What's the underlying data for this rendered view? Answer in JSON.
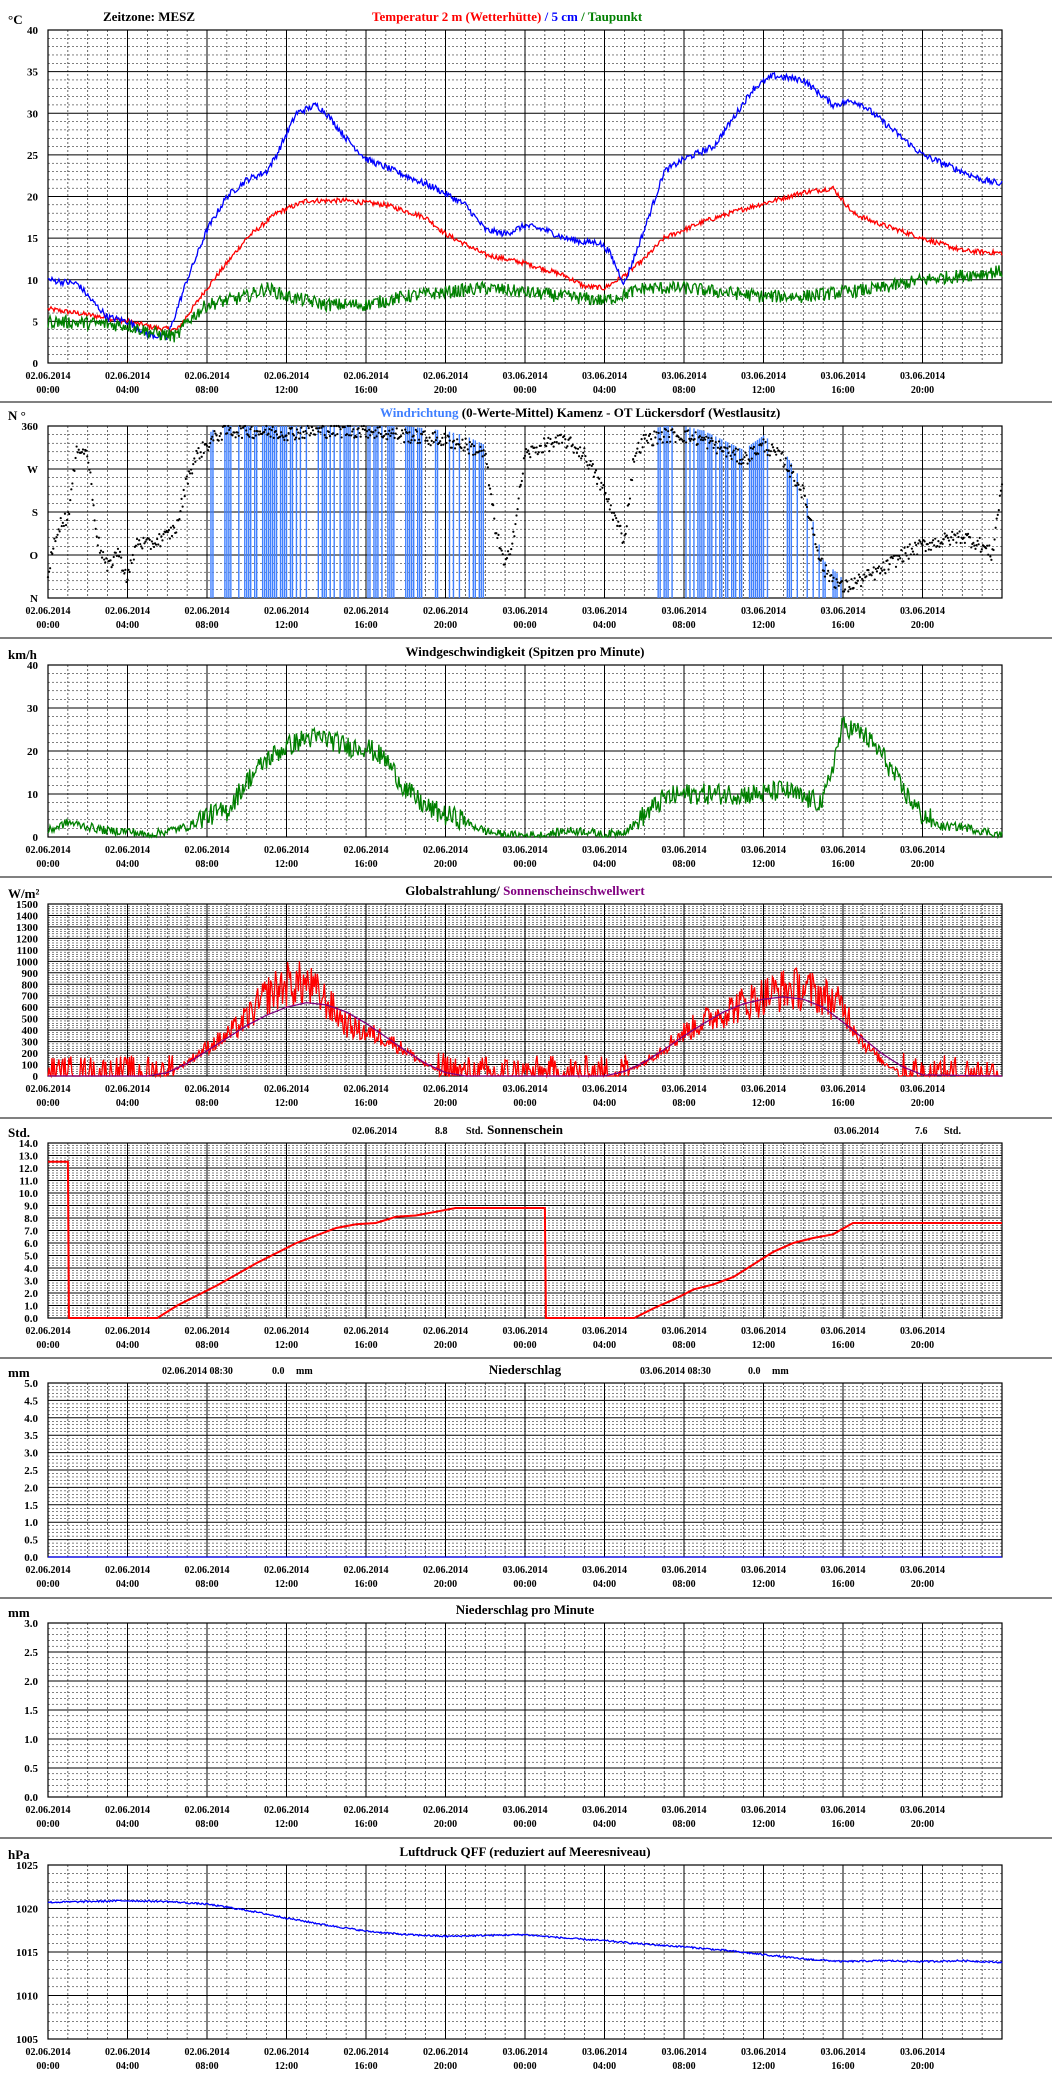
{
  "time_labels": [
    {
      "date": "02.06.2014",
      "time": "00:00"
    },
    {
      "date": "02.06.2014",
      "time": "04:00"
    },
    {
      "date": "02.06.2014",
      "time": "08:00"
    },
    {
      "date": "02.06.2014",
      "time": "12:00"
    },
    {
      "date": "02.06.2014",
      "time": "16:00"
    },
    {
      "date": "02.06.2014",
      "time": "20:00"
    },
    {
      "date": "03.06.2014",
      "time": "00:00"
    },
    {
      "date": "03.06.2014",
      "time": "04:00"
    },
    {
      "date": "03.06.2014",
      "time": "08:00"
    },
    {
      "date": "03.06.2014",
      "time": "12:00"
    },
    {
      "date": "03.06.2014",
      "time": "16:00"
    },
    {
      "date": "03.06.2014",
      "time": "20:00"
    }
  ],
  "colors": {
    "red": "#ff0000",
    "blue": "#0000ff",
    "green": "#008000",
    "purple": "#800080",
    "lightblue": "#4080ff",
    "black": "#000000"
  },
  "chart_data": [
    {
      "id": "temperature",
      "type": "line",
      "unit": "°C",
      "timezone": "Zeitzone: MESZ",
      "title_parts": [
        {
          "text": "Temperatur 2 m (Wetterhütte)",
          "color": "#ff0000"
        },
        {
          "text": " / ",
          "color": "#0000ff"
        },
        {
          "text": "5 cm",
          "color": "#0000ff"
        },
        {
          "text": " / ",
          "color": "#008000"
        },
        {
          "text": "Taupunkt",
          "color": "#008000"
        }
      ],
      "ylim": [
        0,
        40
      ],
      "y_ticks": [
        0,
        5,
        10,
        15,
        20,
        25,
        30,
        35,
        40
      ],
      "xlim": [
        0,
        48
      ],
      "series": [
        {
          "name": "Temperatur 2 m (Wetterhütte)",
          "color": "#ff0000",
          "noise": 0.3,
          "x": [
            0,
            2,
            4,
            5.5,
            6.5,
            8,
            10,
            11.5,
            13,
            15,
            17,
            19,
            20,
            22,
            24,
            26,
            27,
            28,
            29,
            30,
            31,
            33,
            35,
            36.5,
            38,
            39.5,
            40.5,
            41.5,
            44,
            46,
            48
          ],
          "y": [
            6.5,
            5.8,
            5,
            4.2,
            4,
            9,
            15,
            18,
            19.5,
            19.5,
            19,
            17.5,
            15.5,
            13,
            12,
            10.5,
            9.2,
            9,
            10.5,
            12.5,
            15,
            17,
            18.5,
            19.5,
            20.5,
            21,
            18,
            17,
            15,
            13.5,
            13.2
          ]
        },
        {
          "name": "5 cm",
          "color": "#0000ff",
          "noise": 0.4,
          "x": [
            0,
            1.5,
            2.2,
            3,
            4,
            5,
            6,
            7,
            8,
            9,
            10,
            11,
            11.5,
            12.5,
            13.5,
            14,
            15,
            16,
            17,
            18,
            19.5,
            21,
            22,
            23,
            24,
            25,
            26,
            27,
            27.7,
            28.2,
            29,
            30,
            31,
            32,
            33.5,
            34.5,
            35.5,
            36.5,
            38,
            39.5,
            40.5,
            41,
            42,
            44,
            46,
            47,
            48
          ],
          "y": [
            10,
            9.5,
            7.5,
            5.5,
            5,
            3.5,
            3,
            10,
            16,
            20,
            22,
            23,
            25,
            30,
            31,
            30,
            27,
            24.5,
            23.5,
            22.5,
            21,
            19,
            16,
            15.5,
            16.5,
            16,
            15,
            14.5,
            14.5,
            13.5,
            9.5,
            16,
            23,
            24.5,
            26,
            29.5,
            33,
            34.5,
            34,
            31,
            31.5,
            31,
            29,
            25,
            23,
            22,
            21.5
          ],
          "spikes": [
            [
              12,
              16,
              12
            ]
          ]
        },
        {
          "name": "Taupunkt",
          "color": "#008000",
          "noise": 0.8,
          "x": [
            0,
            2,
            4,
            5.5,
            6.5,
            7,
            8,
            10,
            11,
            12,
            14,
            16,
            18,
            20,
            22,
            24,
            26,
            28,
            30,
            32,
            34,
            36,
            38,
            40,
            42,
            44,
            46,
            48
          ],
          "y": [
            5,
            4.8,
            4.5,
            3.5,
            3.2,
            5,
            7,
            8,
            9,
            8,
            7,
            7,
            8,
            8.5,
            9,
            8.5,
            8,
            7.5,
            9,
            9,
            8.5,
            8,
            8,
            8.5,
            9,
            10,
            10.5,
            11
          ]
        }
      ]
    },
    {
      "id": "winddir",
      "type": "scatter",
      "unit": "N °",
      "title_parts": [
        {
          "text": "Windrichtung",
          "color": "#4080ff"
        },
        {
          "text": " (0-Werte-Mittel)",
          "color": "#000000"
        },
        {
          "text": "        Kamenz - OT Lückersdorf (Westlausitz)",
          "color": "#000000"
        }
      ],
      "ylim": [
        0,
        360
      ],
      "y_ticks": [
        0,
        90,
        180,
        270,
        360
      ],
      "y_tick_labels": [
        {
          "value": 0,
          "label": "N"
        },
        {
          "value": 90,
          "label": "O"
        },
        {
          "value": 180,
          "label": "S"
        },
        {
          "value": 270,
          "label": "W"
        },
        {
          "value": 360,
          "label": "360"
        }
      ],
      "xlim": [
        0,
        48
      ],
      "series": [
        {
          "name": "Windrichtung",
          "color": "#000000",
          "noise": 15,
          "x": [
            0,
            0.5,
            1,
            1.5,
            2,
            2.5,
            3,
            3.5,
            4,
            4.5,
            5,
            5.5,
            6,
            6.5,
            7,
            7.5,
            8,
            8.5,
            9,
            10,
            12,
            14,
            16,
            18,
            20,
            21,
            22,
            22.5,
            23,
            23.5,
            24,
            25,
            26,
            27,
            28,
            29,
            29.5,
            30,
            31,
            32,
            33,
            34,
            35,
            36,
            37,
            38,
            39,
            40,
            40.5,
            41,
            42,
            43,
            44,
            45,
            46,
            47,
            47.5,
            48
          ],
          "y": [
            50,
            150,
            170,
            320,
            300,
            120,
            60,
            100,
            40,
            120,
            110,
            120,
            130,
            150,
            250,
            300,
            320,
            340,
            350,
            350,
            345,
            350,
            350,
            340,
            330,
            320,
            300,
            150,
            60,
            150,
            300,
            320,
            330,
            300,
            220,
            120,
            300,
            330,
            340,
            340,
            330,
            310,
            290,
            320,
            290,
            220,
            60,
            20,
            30,
            40,
            60,
            90,
            110,
            120,
            130,
            110,
            90,
            240
          ]
        },
        {
          "name": "Windrichtung (0-Werte-Mittel)",
          "color": "#4080ff",
          "noise": 0,
          "x": [
            0,
            48
          ],
          "y": [
            0,
            0
          ]
        }
      ]
    },
    {
      "id": "windspeed",
      "type": "line",
      "unit": "km/h",
      "title_parts": [
        {
          "text": "Windgeschwindigkeit (Spitzen pro Minute)",
          "color": "#000000"
        }
      ],
      "ylim": [
        0,
        40
      ],
      "y_ticks": [
        0,
        10,
        20,
        30,
        40
      ],
      "xlim": [
        0,
        48
      ],
      "series": [
        {
          "name": "Windgeschwindigkeit",
          "color": "#008000",
          "noise": 5,
          "x": [
            0,
            1,
            2,
            3,
            4,
            5,
            6,
            7,
            8,
            9,
            10,
            11,
            12,
            13,
            14,
            15,
            16,
            17,
            18,
            19,
            20,
            21,
            22,
            23,
            24,
            25,
            26,
            27,
            28,
            29,
            30,
            31,
            32,
            33,
            34,
            35,
            36,
            37,
            38,
            39,
            40,
            41,
            42,
            43,
            44,
            45,
            46,
            47,
            48
          ],
          "y": [
            1,
            3,
            2,
            1,
            1,
            0,
            1,
            2,
            4,
            5,
            12,
            17,
            20,
            22,
            22,
            20,
            20,
            17,
            10,
            6,
            4,
            3,
            1,
            0,
            0,
            0,
            1,
            1,
            0,
            1,
            4,
            8,
            9,
            9,
            9,
            9,
            9,
            10,
            8,
            7,
            25,
            23,
            18,
            10,
            4,
            2,
            2,
            1,
            0
          ]
        }
      ]
    },
    {
      "id": "radiation",
      "type": "line",
      "unit": "W/m²",
      "title_parts": [
        {
          "text": "Globalstrahlung/ ",
          "color": "#000000"
        },
        {
          "text": "Sonnenscheinschwellwert",
          "color": "#800080"
        }
      ],
      "ylim": [
        0,
        1500
      ],
      "y_ticks": [
        0,
        100,
        200,
        300,
        400,
        500,
        600,
        700,
        800,
        900,
        1000,
        1100,
        1200,
        1300,
        1400,
        1500
      ],
      "xlim": [
        0,
        48
      ],
      "series": [
        {
          "name": "Globalstrahlung",
          "color": "#ff0000",
          "noise": 180,
          "x": [
            0,
            5,
            6,
            7,
            8,
            9,
            10,
            11,
            12,
            13,
            14,
            15,
            16,
            17,
            18,
            19,
            20,
            21,
            22,
            28,
            29,
            30,
            31,
            32,
            33,
            34,
            35,
            36,
            37,
            38,
            39,
            40,
            41,
            42,
            43,
            44,
            48
          ],
          "y": [
            0,
            0,
            20,
            120,
            250,
            350,
            500,
            700,
            800,
            800,
            650,
            450,
            380,
            330,
            220,
            100,
            20,
            0,
            0,
            0,
            30,
            120,
            250,
            380,
            480,
            560,
            630,
            700,
            750,
            760,
            700,
            600,
            300,
            120,
            30,
            0,
            0
          ]
        },
        {
          "name": "Sonnenscheinschwellwert",
          "color": "#800080",
          "noise": 0,
          "x": [
            0,
            5,
            6,
            7,
            8,
            9,
            10,
            11,
            12,
            13,
            14,
            15,
            16,
            17,
            18,
            19,
            20,
            21,
            22,
            28,
            29,
            30,
            31,
            32,
            33,
            34,
            35,
            36,
            37,
            38,
            39,
            40,
            41,
            42,
            43,
            44,
            48
          ],
          "y": [
            0,
            0,
            30,
            110,
            220,
            330,
            440,
            530,
            600,
            640,
            620,
            560,
            460,
            340,
            220,
            110,
            30,
            0,
            0,
            0,
            40,
            120,
            230,
            350,
            460,
            560,
            630,
            670,
            690,
            670,
            600,
            470,
            330,
            190,
            80,
            10,
            0
          ]
        }
      ]
    },
    {
      "id": "sunshine",
      "type": "line",
      "unit": "Std.",
      "title_parts": [
        {
          "text": "Sonnenschein",
          "color": "#000000"
        }
      ],
      "summaries": [
        {
          "date": "02.06.2014",
          "value": "8.8",
          "unit": "Std."
        },
        {
          "date": "03.06.2014",
          "value": "7.6",
          "unit": "Std."
        }
      ],
      "ylim": [
        0,
        14
      ],
      "y_ticks": [
        0,
        1,
        2,
        3,
        4,
        5,
        6,
        7,
        8,
        9,
        10,
        11,
        12,
        13,
        14
      ],
      "xlim": [
        0,
        48
      ],
      "series": [
        {
          "name": "Sonnenschein",
          "color": "#ff0000",
          "noise": 0,
          "x": [
            0,
            1,
            1.05,
            5.5,
            6.5,
            7.5,
            8.5,
            9.5,
            10.5,
            11.5,
            12.5,
            13.5,
            14.5,
            15.5,
            16.5,
            17.5,
            18.5,
            19.5,
            20.5,
            21.5,
            22.5,
            25,
            25.05,
            29.5,
            30.5,
            31.5,
            32.5,
            33.5,
            34.5,
            35.5,
            36.5,
            37.5,
            38.5,
            39.5,
            40.5,
            48
          ],
          "y": [
            12.5,
            12.5,
            0,
            0,
            1,
            1.8,
            2.6,
            3.5,
            4.4,
            5.2,
            6,
            6.6,
            7.2,
            7.5,
            7.6,
            8.1,
            8.2,
            8.5,
            8.8,
            8.8,
            8.8,
            8.8,
            0,
            0,
            0.8,
            1.5,
            2.3,
            2.7,
            3.3,
            4.3,
            5.3,
            6,
            6.4,
            6.7,
            7.6,
            7.6
          ]
        }
      ]
    },
    {
      "id": "precip",
      "type": "line",
      "unit": "mm",
      "title_parts": [
        {
          "text": "Niederschlag",
          "color": "#000000"
        }
      ],
      "summaries": [
        {
          "date": "02.06.2014 08:30",
          "value": "0.0",
          "unit": "mm"
        },
        {
          "date": "03.06.2014 08:30",
          "value": "0.0",
          "unit": "mm"
        }
      ],
      "ylim": [
        0,
        5
      ],
      "y_ticks": [
        0,
        0.5,
        1,
        1.5,
        2,
        2.5,
        3,
        3.5,
        4,
        4.5,
        5
      ],
      "xlim": [
        0,
        48
      ],
      "series": [
        {
          "name": "Niederschlag",
          "color": "#0000ff",
          "noise": 0,
          "x": [
            0,
            48
          ],
          "y": [
            0,
            0
          ]
        }
      ]
    },
    {
      "id": "precipmin",
      "type": "line",
      "unit": "mm",
      "title_parts": [
        {
          "text": "Niederschlag pro Minute",
          "color": "#000000"
        }
      ],
      "ylim": [
        0,
        3
      ],
      "y_ticks": [
        0,
        0.5,
        1,
        1.5,
        2,
        2.5,
        3
      ],
      "xlim": [
        0,
        48
      ],
      "series": []
    },
    {
      "id": "pressure",
      "type": "line",
      "unit": "hPa",
      "title_parts": [
        {
          "text": "Luftdruck QFF (reduziert auf Meeresniveau)",
          "color": "#000000"
        }
      ],
      "ylim": [
        1005,
        1025
      ],
      "y_ticks": [
        1005,
        1010,
        1015,
        1020,
        1025
      ],
      "xlim": [
        0,
        48
      ],
      "series": [
        {
          "name": "Luftdruck QFF",
          "color": "#0000ff",
          "noise": 0.1,
          "x": [
            0,
            2,
            4,
            6,
            8,
            10,
            12,
            14,
            16,
            18,
            20,
            22,
            24,
            26,
            28,
            30,
            32,
            34,
            36,
            38,
            40,
            42,
            44,
            46,
            48
          ],
          "y": [
            1020.7,
            1020.8,
            1020.9,
            1020.8,
            1020.5,
            1019.8,
            1018.9,
            1018.1,
            1017.4,
            1017.0,
            1016.8,
            1016.9,
            1017.0,
            1016.6,
            1016.3,
            1015.9,
            1015.6,
            1015.2,
            1014.7,
            1014.2,
            1013.9,
            1014.0,
            1013.9,
            1014.0,
            1013.8
          ]
        }
      ]
    }
  ]
}
